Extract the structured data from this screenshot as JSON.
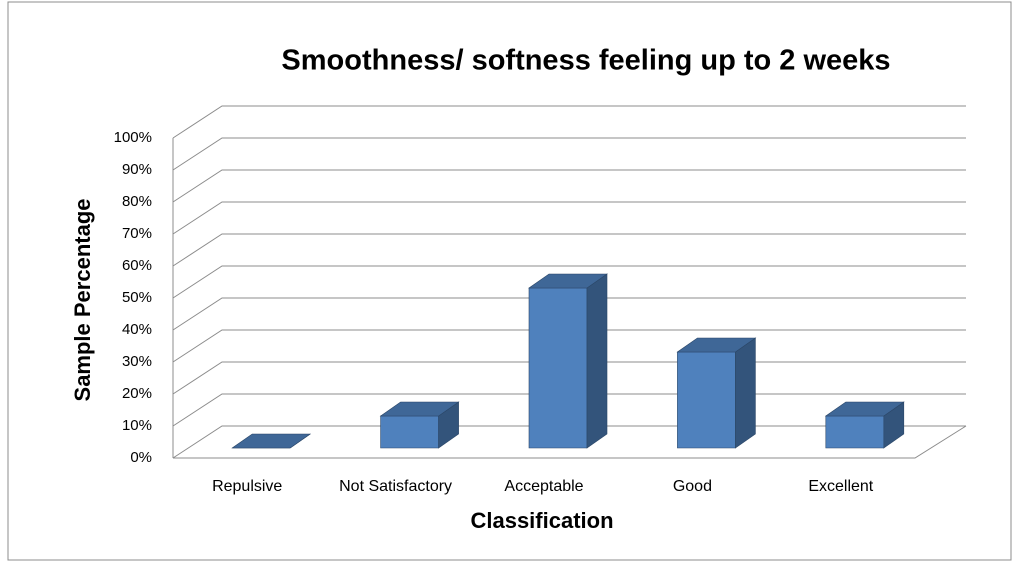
{
  "chart_data": {
    "type": "bar3d",
    "title": "Smoothness/ softness feeling up to 2 weeks",
    "x_label": "Classification",
    "y_label": "Sample Percentage",
    "categories": [
      "Repulsive",
      "Not Satisfactory",
      "Acceptable",
      "Good",
      "Excellent"
    ],
    "values": [
      0,
      10,
      50,
      30,
      10
    ],
    "color": "#4f81bd",
    "ylim": [
      0,
      100
    ],
    "yticks": [
      {
        "value": 0,
        "label": "0%"
      },
      {
        "value": 10,
        "label": "10%"
      },
      {
        "value": 20,
        "label": "20%"
      },
      {
        "value": 30,
        "label": "30%"
      },
      {
        "value": 40,
        "label": "40%"
      },
      {
        "value": 50,
        "label": "50%"
      },
      {
        "value": 60,
        "label": "60%"
      },
      {
        "value": 70,
        "label": "70%"
      },
      {
        "value": 80,
        "label": "80%"
      },
      {
        "value": 90,
        "label": "90%"
      },
      {
        "value": 100,
        "label": "100%"
      }
    ],
    "grid": true
  }
}
